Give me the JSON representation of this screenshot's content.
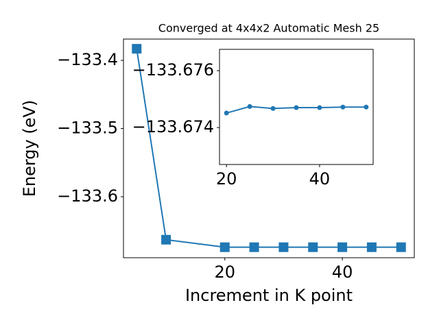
{
  "chart_data": [
    {
      "type": "line",
      "title": "Converged at 4x4x2 Automatic Mesh 25",
      "x_label": "Increment in K point",
      "y_label": "Energy (eV)",
      "x": [
        5,
        10,
        20,
        25,
        30,
        35,
        40,
        45,
        50
      ],
      "series": [
        {
          "color": "#1f77b4",
          "marker": "square",
          "values": [
            -133.383,
            -133.663,
            -133.674,
            -133.674,
            -133.674,
            -133.674,
            -133.674,
            -133.674,
            -133.674
          ]
        }
      ],
      "xlim": [
        2.75,
        52.25
      ],
      "ylim": [
        -133.6894,
        -133.3688
      ],
      "xticks": [
        20,
        40
      ],
      "yticks": [
        {
          "value": -133.6,
          "label": "−133.6"
        },
        {
          "value": -133.5,
          "label": "−133.5"
        },
        {
          "value": -133.4,
          "label": "−133.4"
        }
      ]
    },
    {
      "type": "line",
      "x": [
        20,
        25,
        30,
        35,
        40,
        45,
        50
      ],
      "series": [
        {
          "color": "#1f77b4",
          "marker": "circle",
          "values": [
            -133.67451,
            -133.67474,
            -133.67467,
            -133.6747,
            -133.6747,
            -133.67472,
            -133.67472
          ]
        }
      ],
      "xlim": [
        18.5,
        51.5
      ],
      "ylim": [
        -133.6727,
        -133.67675
      ],
      "xticks": [
        20,
        40
      ],
      "yticks": [
        {
          "value": -133.674,
          "label": "−133.674"
        },
        {
          "value": -133.676,
          "label": "−133.676"
        }
      ]
    }
  ]
}
